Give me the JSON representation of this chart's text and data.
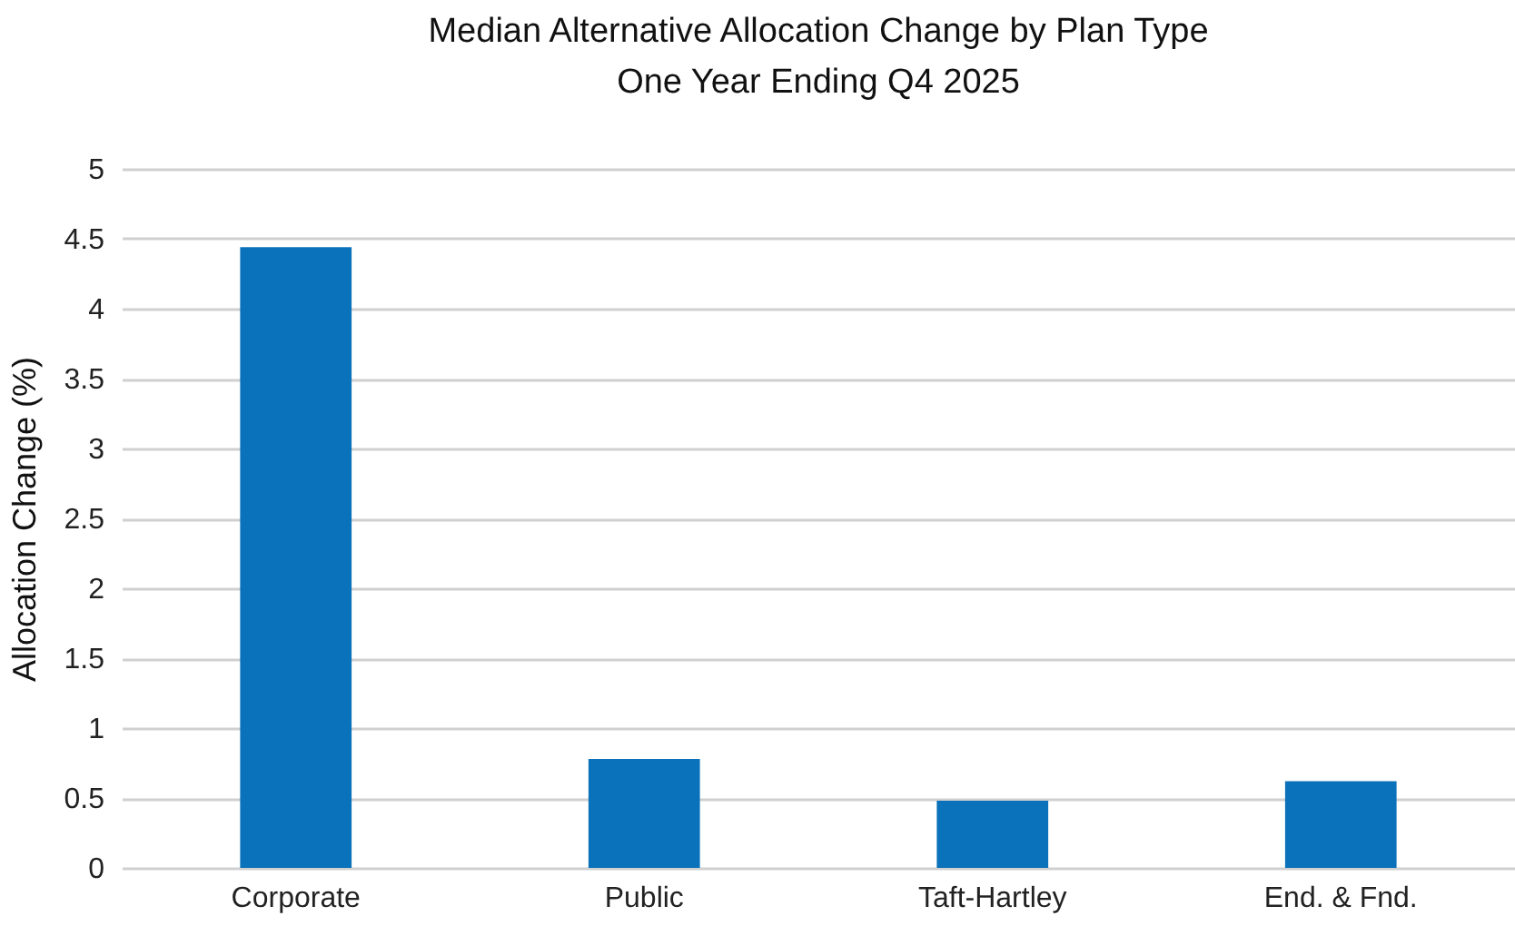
{
  "chart_data": {
    "type": "bar",
    "title": [
      "Median Alternative Allocation Change by Plan Type",
      "One Year Ending Q4 2025"
    ],
    "ylabel": "Allocation Change (%)",
    "categories": [
      "Corporate",
      "Public",
      "Taft-Hartley",
      "End. & Fnd."
    ],
    "values": [
      4.44,
      0.78,
      0.48,
      0.62
    ],
    "color": "#0a72ba",
    "ylim": [
      0,
      5
    ],
    "yticks": [
      0,
      0.5,
      1,
      1.5,
      2,
      2.5,
      3,
      3.5,
      4,
      4.5,
      5
    ],
    "grid": "y"
  }
}
